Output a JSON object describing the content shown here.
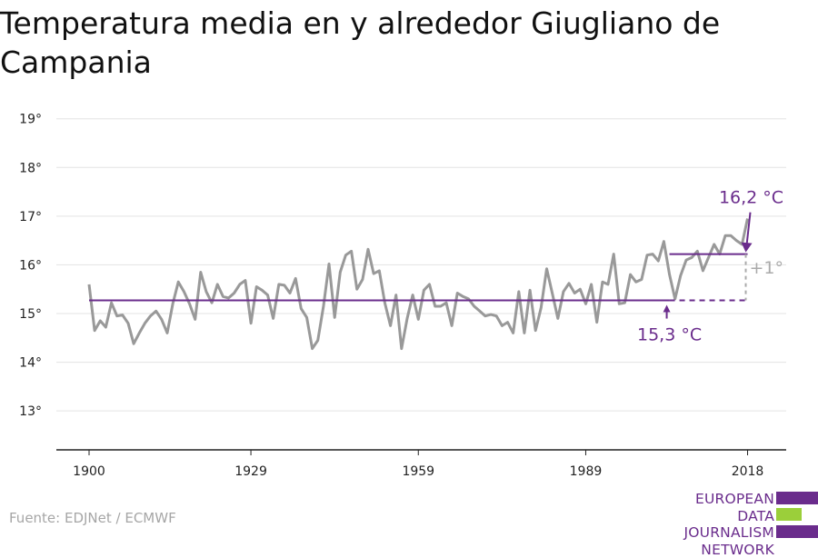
{
  "title": "Temperatura media en y alrededor Giugliano de Campania",
  "source": "Fuente: EDJNet / ECMWF",
  "logo": {
    "lines": [
      "EUROPEAN",
      "DATA JOURNALISM",
      "NETWORK"
    ],
    "colors": {
      "purple": "#6a2c8c",
      "green": "#9bcf3a"
    }
  },
  "chart_data": {
    "type": "line",
    "xlabel": "",
    "ylabel": "",
    "xlim": [
      1900,
      2018
    ],
    "ylim": [
      12.2,
      19.2
    ],
    "x_ticks": [
      1900,
      1929,
      1959,
      1989,
      2018
    ],
    "x_tick_labels": [
      "1900",
      "1929",
      "1959",
      "1989",
      "2018"
    ],
    "y_ticks": [
      13,
      14,
      15,
      16,
      17,
      18,
      19
    ],
    "y_tick_labels": [
      "13°",
      "14°",
      "15°",
      "16°",
      "17°",
      "18°",
      "19°"
    ],
    "grid": true,
    "colors": {
      "series": "#999999",
      "average": "#6a2c8c",
      "diff": "#aaaaaa",
      "axis": "#222222",
      "grid": "#e3e3e3"
    },
    "series": [
      {
        "x_start": 1900,
        "values": [
          15.6,
          14.65,
          14.85,
          14.72,
          15.22,
          14.95,
          14.97,
          14.8,
          14.38,
          14.6,
          14.8,
          14.95,
          15.05,
          14.88,
          14.6,
          15.2,
          15.65,
          15.45,
          15.2,
          14.88,
          15.85,
          15.45,
          15.22,
          15.6,
          15.35,
          15.32,
          15.42,
          15.6,
          15.68,
          14.8,
          15.55,
          15.48,
          15.38,
          14.9,
          15.6,
          15.58,
          15.42,
          15.72,
          15.1,
          14.92,
          14.28,
          14.45,
          15.15,
          16.02,
          14.92,
          15.85,
          16.2,
          16.28,
          15.5,
          15.7,
          16.32,
          15.82,
          15.88,
          15.22,
          14.75,
          15.38,
          14.28,
          14.9,
          15.38,
          14.88,
          15.48,
          15.6,
          15.15,
          15.15,
          15.22,
          14.75,
          15.42,
          15.35,
          15.3,
          15.15,
          15.05,
          14.95,
          14.98,
          14.95,
          14.75,
          14.82,
          14.6,
          15.45,
          14.6,
          15.48,
          14.65,
          15.12,
          15.92,
          15.42,
          14.9,
          15.45,
          15.62,
          15.42,
          15.5,
          15.2,
          15.6,
          14.82,
          15.65,
          15.6,
          16.22,
          15.2,
          15.22,
          15.8,
          15.65,
          15.7,
          16.2,
          16.22,
          16.08,
          16.48,
          15.8,
          15.3,
          15.78,
          16.1,
          16.15,
          16.28,
          15.88,
          16.15,
          16.42,
          16.22,
          16.6,
          16.6,
          16.5,
          16.42,
          16.95
        ]
      }
    ],
    "reference_lines": [
      {
        "label": "15,3 °C",
        "value": 15.27,
        "x_from": 1900,
        "x_to": 2004,
        "dashed_to": 2018
      },
      {
        "label": "16,2 °C",
        "value": 16.22,
        "x_from": 2004,
        "x_to": 2018
      }
    ],
    "difference_label": "+1°"
  }
}
